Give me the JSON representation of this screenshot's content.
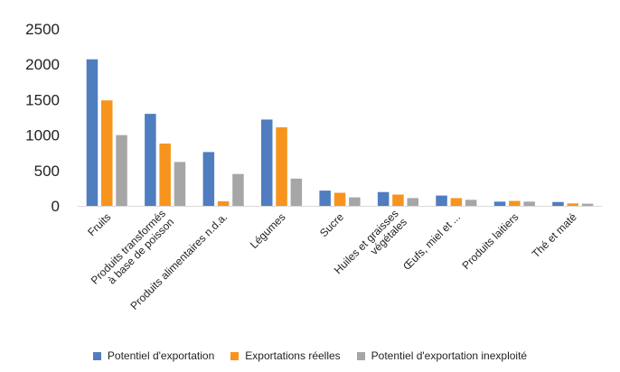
{
  "chart_data": {
    "type": "bar",
    "categories": [
      "Fruits",
      "Produits transformés\nà base de poisson",
      "Produits alimentaires n.d.a.",
      "Légumes",
      "Sucre",
      "Huiles et graisses\nvégétales",
      "Œufs, miel et ...",
      "Produits laitiers",
      "Thé et maté"
    ],
    "series": [
      {
        "name": "Potentiel d'exportation",
        "color": "#4f7dbf",
        "values": [
          2070,
          1300,
          760,
          1220,
          215,
          195,
          145,
          60,
          55
        ]
      },
      {
        "name": "Exportations réelles",
        "color": "#f7941d",
        "values": [
          1490,
          880,
          65,
          1110,
          185,
          160,
          110,
          70,
          35
        ]
      },
      {
        "name": "Potentiel d'exportation inexploité",
        "color": "#a6a6a6",
        "values": [
          1000,
          620,
          450,
          385,
          120,
          110,
          85,
          60,
          30
        ]
      }
    ],
    "yticks": [
      "0",
      "500",
      "1000",
      "1500",
      "2000",
      "2500"
    ],
    "ylim": [
      0,
      2500
    ],
    "grid": false,
    "legend_position": "bottom"
  }
}
